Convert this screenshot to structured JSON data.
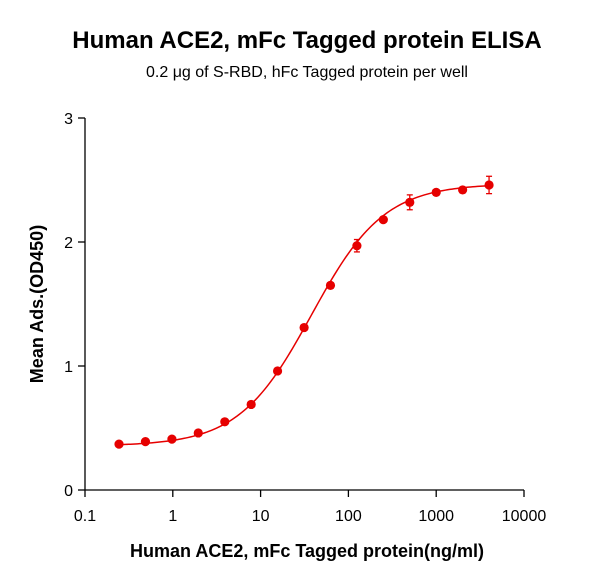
{
  "chart_data": {
    "type": "scatter",
    "title": "Human ACE2, mFc Tagged protein ELISA",
    "subtitle": "0.2 μg of S-RBD, hFc Tagged protein per well",
    "xlabel": "Human ACE2, mFc Tagged protein(ng/ml)",
    "ylabel": "Mean Ads.(OD450)",
    "xscale": "log",
    "xlim": [
      0.1,
      10000
    ],
    "ylim": [
      0,
      3
    ],
    "x_ticks": [
      0.1,
      1,
      10,
      100,
      1000,
      10000
    ],
    "x_tick_labels": [
      "0.1",
      "1",
      "10",
      "100",
      "1000",
      "10000"
    ],
    "y_ticks": [
      0,
      1,
      2,
      3
    ],
    "y_tick_labels": [
      "0",
      "1",
      "2",
      "3"
    ],
    "grid": false,
    "series": [
      {
        "color": "#e60000",
        "x": [
          0.244,
          0.488,
          0.977,
          1.95,
          3.91,
          7.81,
          15.6,
          31.3,
          62.5,
          125,
          250,
          500,
          1000,
          2000,
          4000
        ],
        "y": [
          0.37,
          0.39,
          0.41,
          0.46,
          0.55,
          0.69,
          0.96,
          1.31,
          1.65,
          1.97,
          2.18,
          2.32,
          2.4,
          2.42,
          2.46
        ],
        "error": [
          0.01,
          0.01,
          0.01,
          0.01,
          0.01,
          0.01,
          0.02,
          0.02,
          0.02,
          0.05,
          0.02,
          0.06,
          0.02,
          0.02,
          0.07
        ]
      }
    ],
    "fit_curve": {
      "color": "#e60000",
      "model": "4PL",
      "bottom": 0.355,
      "top": 2.47,
      "ec50": 38,
      "hill": 1.05
    }
  }
}
